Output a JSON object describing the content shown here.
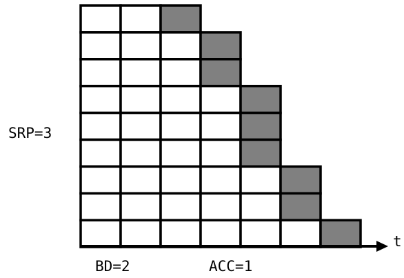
{
  "diagram": {
    "label_srp": "SRP=3",
    "label_bd": "BD=2",
    "label_acc": "ACC=1",
    "axis_label": "t",
    "colors": {
      "filled": "#808080",
      "empty": "#ffffff",
      "line": "#000000"
    },
    "rows": [
      {
        "white_cells": 2,
        "gray_cells": 1
      },
      {
        "white_cells": 3,
        "gray_cells": 1
      },
      {
        "white_cells": 3,
        "gray_cells": 1
      },
      {
        "white_cells": 4,
        "gray_cells": 1
      },
      {
        "white_cells": 4,
        "gray_cells": 1
      },
      {
        "white_cells": 4,
        "gray_cells": 1
      },
      {
        "white_cells": 5,
        "gray_cells": 1
      },
      {
        "white_cells": 5,
        "gray_cells": 1
      },
      {
        "white_cells": 6,
        "gray_cells": 1
      }
    ]
  }
}
